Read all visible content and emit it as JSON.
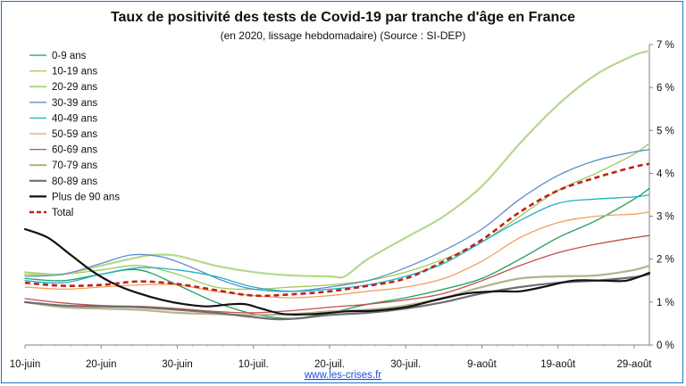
{
  "chart_data": {
    "type": "line",
    "title": "Taux de positivité des tests de Covid-19 par tranche d'âge en France",
    "subtitle": "(en 2020, lissage hebdomadaire) (Source : SI-DEP)",
    "source_link": "www.les-crises.fr",
    "x_ticks": [
      "10-juin",
      "20-juin",
      "30-juin",
      "10-juil.",
      "20-juil.",
      "30-juil.",
      "9-août",
      "19-août",
      "29-août"
    ],
    "y_ticks": [
      "0 %",
      "1 %",
      "2 %",
      "3 %",
      "4 %",
      "5 %",
      "6 %",
      "7 %"
    ],
    "ylim": [
      0,
      7
    ],
    "xlim_days": [
      0,
      82
    ],
    "legend_position": "top-left",
    "grid": "none",
    "series": [
      {
        "name": "0-9 ans",
        "color": "#1e9e5a",
        "width": 1.3,
        "dash": "",
        "points": [
          [
            0,
            1.55
          ],
          [
            5,
            1.5
          ],
          [
            10,
            1.65
          ],
          [
            15,
            1.75
          ],
          [
            20,
            1.4
          ],
          [
            25,
            1.0
          ],
          [
            30,
            0.72
          ],
          [
            35,
            0.62
          ],
          [
            40,
            0.75
          ],
          [
            45,
            0.95
          ],
          [
            50,
            1.1
          ],
          [
            55,
            1.3
          ],
          [
            60,
            1.55
          ],
          [
            65,
            2.0
          ],
          [
            70,
            2.5
          ],
          [
            75,
            2.9
          ],
          [
            80,
            3.4
          ],
          [
            82,
            3.65
          ]
        ]
      },
      {
        "name": "10-19 ans",
        "color": "#9bc95b",
        "width": 1.3,
        "dash": "",
        "points": [
          [
            0,
            1.7
          ],
          [
            5,
            1.65
          ],
          [
            10,
            1.75
          ],
          [
            15,
            1.85
          ],
          [
            20,
            1.65
          ],
          [
            25,
            1.35
          ],
          [
            30,
            1.3
          ],
          [
            35,
            1.35
          ],
          [
            40,
            1.4
          ],
          [
            45,
            1.5
          ],
          [
            50,
            1.7
          ],
          [
            55,
            2.0
          ],
          [
            60,
            2.4
          ],
          [
            65,
            3.0
          ],
          [
            70,
            3.6
          ],
          [
            75,
            4.0
          ],
          [
            80,
            4.45
          ],
          [
            82,
            4.7
          ]
        ]
      },
      {
        "name": "20-29 ans",
        "color": "#b3d98a",
        "width": 2.2,
        "dash": "",
        "points": [
          [
            0,
            1.65
          ],
          [
            5,
            1.65
          ],
          [
            10,
            1.85
          ],
          [
            15,
            2.05
          ],
          [
            17,
            2.1
          ],
          [
            20,
            2.08
          ],
          [
            25,
            1.85
          ],
          [
            30,
            1.7
          ],
          [
            35,
            1.62
          ],
          [
            40,
            1.6
          ],
          [
            42,
            1.6
          ],
          [
            45,
            2.0
          ],
          [
            50,
            2.5
          ],
          [
            55,
            3.0
          ],
          [
            60,
            3.7
          ],
          [
            65,
            4.7
          ],
          [
            70,
            5.6
          ],
          [
            75,
            6.3
          ],
          [
            80,
            6.75
          ],
          [
            82,
            6.85
          ]
        ]
      },
      {
        "name": "30-39 ans",
        "color": "#5b8fc9",
        "width": 1.3,
        "dash": "",
        "points": [
          [
            0,
            1.6
          ],
          [
            5,
            1.65
          ],
          [
            10,
            1.9
          ],
          [
            14,
            2.1
          ],
          [
            18,
            2.05
          ],
          [
            22,
            1.8
          ],
          [
            26,
            1.5
          ],
          [
            30,
            1.3
          ],
          [
            35,
            1.25
          ],
          [
            40,
            1.35
          ],
          [
            45,
            1.5
          ],
          [
            50,
            1.8
          ],
          [
            55,
            2.2
          ],
          [
            60,
            2.7
          ],
          [
            65,
            3.4
          ],
          [
            70,
            3.95
          ],
          [
            75,
            4.3
          ],
          [
            80,
            4.5
          ],
          [
            82,
            4.55
          ]
        ]
      },
      {
        "name": "40-49 ans",
        "color": "#1eb1c8",
        "width": 1.3,
        "dash": "",
        "points": [
          [
            0,
            1.5
          ],
          [
            5,
            1.45
          ],
          [
            10,
            1.65
          ],
          [
            15,
            1.8
          ],
          [
            20,
            1.75
          ],
          [
            25,
            1.6
          ],
          [
            30,
            1.35
          ],
          [
            35,
            1.25
          ],
          [
            40,
            1.3
          ],
          [
            45,
            1.4
          ],
          [
            50,
            1.6
          ],
          [
            55,
            1.9
          ],
          [
            60,
            2.4
          ],
          [
            65,
            2.9
          ],
          [
            70,
            3.3
          ],
          [
            75,
            3.4
          ],
          [
            80,
            3.45
          ],
          [
            82,
            3.5
          ]
        ]
      },
      {
        "name": "50-59 ans",
        "color": "#f0a05a",
        "width": 1.3,
        "dash": "",
        "points": [
          [
            0,
            1.35
          ],
          [
            5,
            1.3
          ],
          [
            10,
            1.35
          ],
          [
            15,
            1.4
          ],
          [
            20,
            1.4
          ],
          [
            25,
            1.25
          ],
          [
            30,
            1.15
          ],
          [
            35,
            1.1
          ],
          [
            40,
            1.15
          ],
          [
            45,
            1.25
          ],
          [
            50,
            1.35
          ],
          [
            55,
            1.55
          ],
          [
            60,
            1.95
          ],
          [
            65,
            2.5
          ],
          [
            70,
            2.85
          ],
          [
            75,
            3.0
          ],
          [
            80,
            3.05
          ],
          [
            82,
            3.1
          ]
        ]
      },
      {
        "name": "60-69 ans",
        "color": "#c0504d",
        "width": 1.3,
        "dash": "",
        "points": [
          [
            0,
            1.08
          ],
          [
            5,
            0.98
          ],
          [
            10,
            0.92
          ],
          [
            15,
            0.9
          ],
          [
            20,
            0.85
          ],
          [
            25,
            0.78
          ],
          [
            30,
            0.75
          ],
          [
            35,
            0.8
          ],
          [
            40,
            0.88
          ],
          [
            45,
            0.95
          ],
          [
            50,
            1.05
          ],
          [
            55,
            1.2
          ],
          [
            60,
            1.5
          ],
          [
            65,
            1.85
          ],
          [
            70,
            2.15
          ],
          [
            75,
            2.35
          ],
          [
            80,
            2.5
          ],
          [
            82,
            2.55
          ]
        ]
      },
      {
        "name": "70-79 ans",
        "color": "#b8b08a",
        "width": 2.2,
        "dash": "",
        "points": [
          [
            0,
            1.0
          ],
          [
            5,
            0.88
          ],
          [
            10,
            0.85
          ],
          [
            15,
            0.82
          ],
          [
            20,
            0.75
          ],
          [
            25,
            0.72
          ],
          [
            30,
            0.7
          ],
          [
            35,
            0.72
          ],
          [
            40,
            0.78
          ],
          [
            45,
            0.82
          ],
          [
            50,
            0.92
          ],
          [
            55,
            1.1
          ],
          [
            60,
            1.35
          ],
          [
            65,
            1.55
          ],
          [
            70,
            1.6
          ],
          [
            75,
            1.62
          ],
          [
            80,
            1.75
          ],
          [
            82,
            1.85
          ]
        ]
      },
      {
        "name": "80-89 ans",
        "color": "#6e6e6e",
        "width": 2.2,
        "dash": "",
        "points": [
          [
            0,
            1.0
          ],
          [
            5,
            0.92
          ],
          [
            10,
            0.9
          ],
          [
            15,
            0.88
          ],
          [
            20,
            0.82
          ],
          [
            25,
            0.75
          ],
          [
            30,
            0.65
          ],
          [
            33,
            0.6
          ],
          [
            36,
            0.62
          ],
          [
            40,
            0.7
          ],
          [
            45,
            0.75
          ],
          [
            50,
            0.85
          ],
          [
            55,
            1.0
          ],
          [
            60,
            1.2
          ],
          [
            65,
            1.35
          ],
          [
            70,
            1.45
          ],
          [
            75,
            1.5
          ],
          [
            80,
            1.58
          ],
          [
            82,
            1.65
          ]
        ]
      },
      {
        "name": "Plus de 90 ans",
        "color": "#111111",
        "width": 2.2,
        "dash": "",
        "points": [
          [
            0,
            2.7
          ],
          [
            3,
            2.5
          ],
          [
            6,
            2.1
          ],
          [
            9,
            1.7
          ],
          [
            12,
            1.4
          ],
          [
            15,
            1.2
          ],
          [
            18,
            1.05
          ],
          [
            21,
            0.95
          ],
          [
            24,
            0.9
          ],
          [
            27,
            0.95
          ],
          [
            29,
            0.95
          ],
          [
            31,
            0.85
          ],
          [
            34,
            0.72
          ],
          [
            38,
            0.72
          ],
          [
            42,
            0.78
          ],
          [
            46,
            0.8
          ],
          [
            50,
            0.88
          ],
          [
            54,
            1.05
          ],
          [
            58,
            1.2
          ],
          [
            62,
            1.25
          ],
          [
            65,
            1.25
          ],
          [
            68,
            1.35
          ],
          [
            72,
            1.5
          ],
          [
            76,
            1.5
          ],
          [
            79,
            1.5
          ],
          [
            82,
            1.68
          ]
        ]
      },
      {
        "name": "Total",
        "color": "#c0201a",
        "width": 2.6,
        "dash": "6,4",
        "points": [
          [
            0,
            1.45
          ],
          [
            5,
            1.38
          ],
          [
            10,
            1.4
          ],
          [
            15,
            1.48
          ],
          [
            20,
            1.42
          ],
          [
            25,
            1.28
          ],
          [
            30,
            1.15
          ],
          [
            35,
            1.18
          ],
          [
            40,
            1.25
          ],
          [
            45,
            1.38
          ],
          [
            50,
            1.55
          ],
          [
            55,
            1.95
          ],
          [
            60,
            2.45
          ],
          [
            65,
            3.1
          ],
          [
            70,
            3.6
          ],
          [
            75,
            3.9
          ],
          [
            80,
            4.15
          ],
          [
            82,
            4.22
          ]
        ]
      }
    ]
  }
}
